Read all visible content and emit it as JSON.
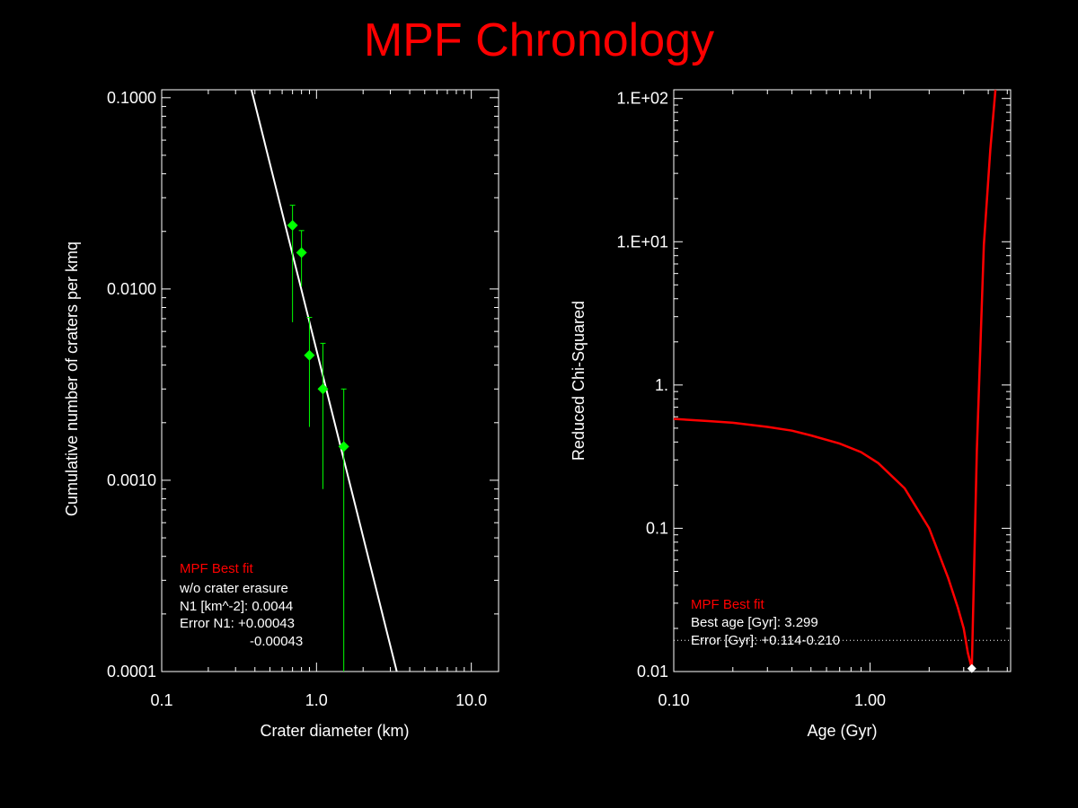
{
  "title": "MPF Chronology",
  "colors": {
    "background": "#000000",
    "title": "#ff0000",
    "fit_line": "#ffffff",
    "points": "#00ff00",
    "chi_curve": "#ff0000",
    "best_marker": "#ffffff",
    "axes": "#ffffff"
  },
  "chart_data": [
    {
      "type": "scatter",
      "xlabel": "Crater diameter (km)",
      "ylabel": "Cumulative number of craters per kmq",
      "xscale": "log",
      "yscale": "log",
      "xlim": [
        0.1,
        15
      ],
      "ylim": [
        0.0001,
        0.11
      ],
      "xticks": [
        "0.1",
        "1.0",
        "10.0"
      ],
      "yticks": [
        "0.0001",
        "0.0010",
        "0.0100",
        "0.1000"
      ],
      "series": [
        {
          "type": "scatter",
          "x": [
            0.7,
            0.8,
            0.9,
            1.1,
            1.5
          ],
          "y": [
            0.0215,
            0.0155,
            0.0045,
            0.003,
            0.0015
          ],
          "y_err_low": [
            0.0067,
            0.0103,
            0.0019,
            0.0009,
            0.0001
          ],
          "y_err_high": [
            0.0274,
            0.0202,
            0.0071,
            0.0052,
            0.003
          ]
        },
        {
          "type": "line",
          "x": [
            0.38,
            3.3
          ],
          "y": [
            0.11,
            0.0001
          ]
        }
      ],
      "legend": {
        "heading": "MPF Best fit",
        "lines": [
          "w/o crater erasure",
          "N1 [km^-2]: 0.0044",
          "Error N1: +0.00043",
          "-0.00043"
        ]
      }
    },
    {
      "type": "line",
      "xlabel": "Age (Gyr)",
      "ylabel": "Reduced Chi-Squared",
      "xscale": "log",
      "yscale": "log",
      "xlim": [
        0.1,
        5.2
      ],
      "ylim": [
        0.01,
        115
      ],
      "xticks": [
        "0.10",
        "1.00"
      ],
      "yticks": [
        "0.01",
        "0.1",
        "1.",
        "1.E+01",
        "1.E+02"
      ],
      "series": [
        {
          "type": "line",
          "x": [
            0.1,
            0.15,
            0.2,
            0.3,
            0.4,
            0.5,
            0.7,
            0.9,
            1.1,
            1.5,
            2.0,
            2.5,
            2.8,
            3.0,
            3.15,
            3.3,
            3.5,
            3.8,
            4.1,
            4.35
          ],
          "y": [
            0.58,
            0.56,
            0.545,
            0.51,
            0.48,
            0.445,
            0.39,
            0.34,
            0.285,
            0.19,
            0.1,
            0.045,
            0.028,
            0.02,
            0.0135,
            0.0105,
            0.35,
            9.5,
            44,
            115
          ]
        }
      ],
      "best_point": {
        "x": 3.299,
        "y": 0.0105
      },
      "reference_line_y": 0.0165,
      "legend": {
        "heading": "MPF Best fit",
        "lines": [
          "Best age [Gyr]: 3.299",
          "Error [Gyr]: +0.114-0.210"
        ]
      }
    }
  ]
}
